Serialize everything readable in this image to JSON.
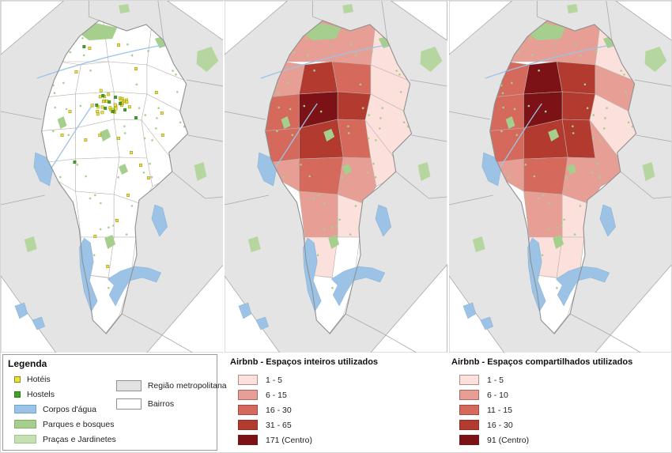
{
  "legend": {
    "title": "Legenda",
    "items": [
      {
        "label": "Hotéis",
        "color": "#eae23f",
        "border": "#8f8a12"
      },
      {
        "label": "Hostels",
        "color": "#3fa32a",
        "border": "#2c7a1b"
      },
      {
        "label": "Corpos d'água",
        "color": "#9cc3e5",
        "border": "#6fa3cf"
      },
      {
        "label": "Parques e bosques",
        "color": "#a6cf8d",
        "border": "#7fb065"
      },
      {
        "label": "Praças e Jardinetes",
        "color": "#c6e0b4",
        "border": "#9cc584"
      }
    ],
    "region_items": [
      {
        "label": "Região metropolitana",
        "color": "#e3e3e3",
        "border": "#8f8f8f"
      },
      {
        "label": "Bairros",
        "color": "#ffffff",
        "border": "#8f8f8f"
      }
    ]
  },
  "airbnb_inteiros": {
    "title": "Airbnb - Espaços inteiros utilizados",
    "classes": [
      {
        "label": "1 - 5",
        "color": "#fbe0dc"
      },
      {
        "label": "6 - 15",
        "color": "#e79f95"
      },
      {
        "label": "16 - 30",
        "color": "#d4695c"
      },
      {
        "label": "31 - 65",
        "color": "#b23a2e"
      },
      {
        "label": "171 (Centro)",
        "color": "#7c1215"
      }
    ]
  },
  "airbnb_compartilhados": {
    "title": "Airbnb - Espaços compartilhados utilizados",
    "classes": [
      {
        "label": "1 - 5",
        "color": "#fbe0dc"
      },
      {
        "label": "6 - 10",
        "color": "#e79f95"
      },
      {
        "label": "11 - 15",
        "color": "#d4695c"
      },
      {
        "label": "16 - 30",
        "color": "#b23a2e"
      },
      {
        "label": "91 (Centro)",
        "color": "#7c1215"
      }
    ]
  },
  "map_colors": {
    "metro": "#e4e4e4",
    "metro_line": "#a9a9a9",
    "bairro": "#ffffff",
    "district_line": "#b9b3ae",
    "outline": "#8f8f8f",
    "water": "#9cc3e5",
    "water_edge": "#74a6d2",
    "park": "#a6cf8d",
    "park_gray": "#b5d69e"
  }
}
